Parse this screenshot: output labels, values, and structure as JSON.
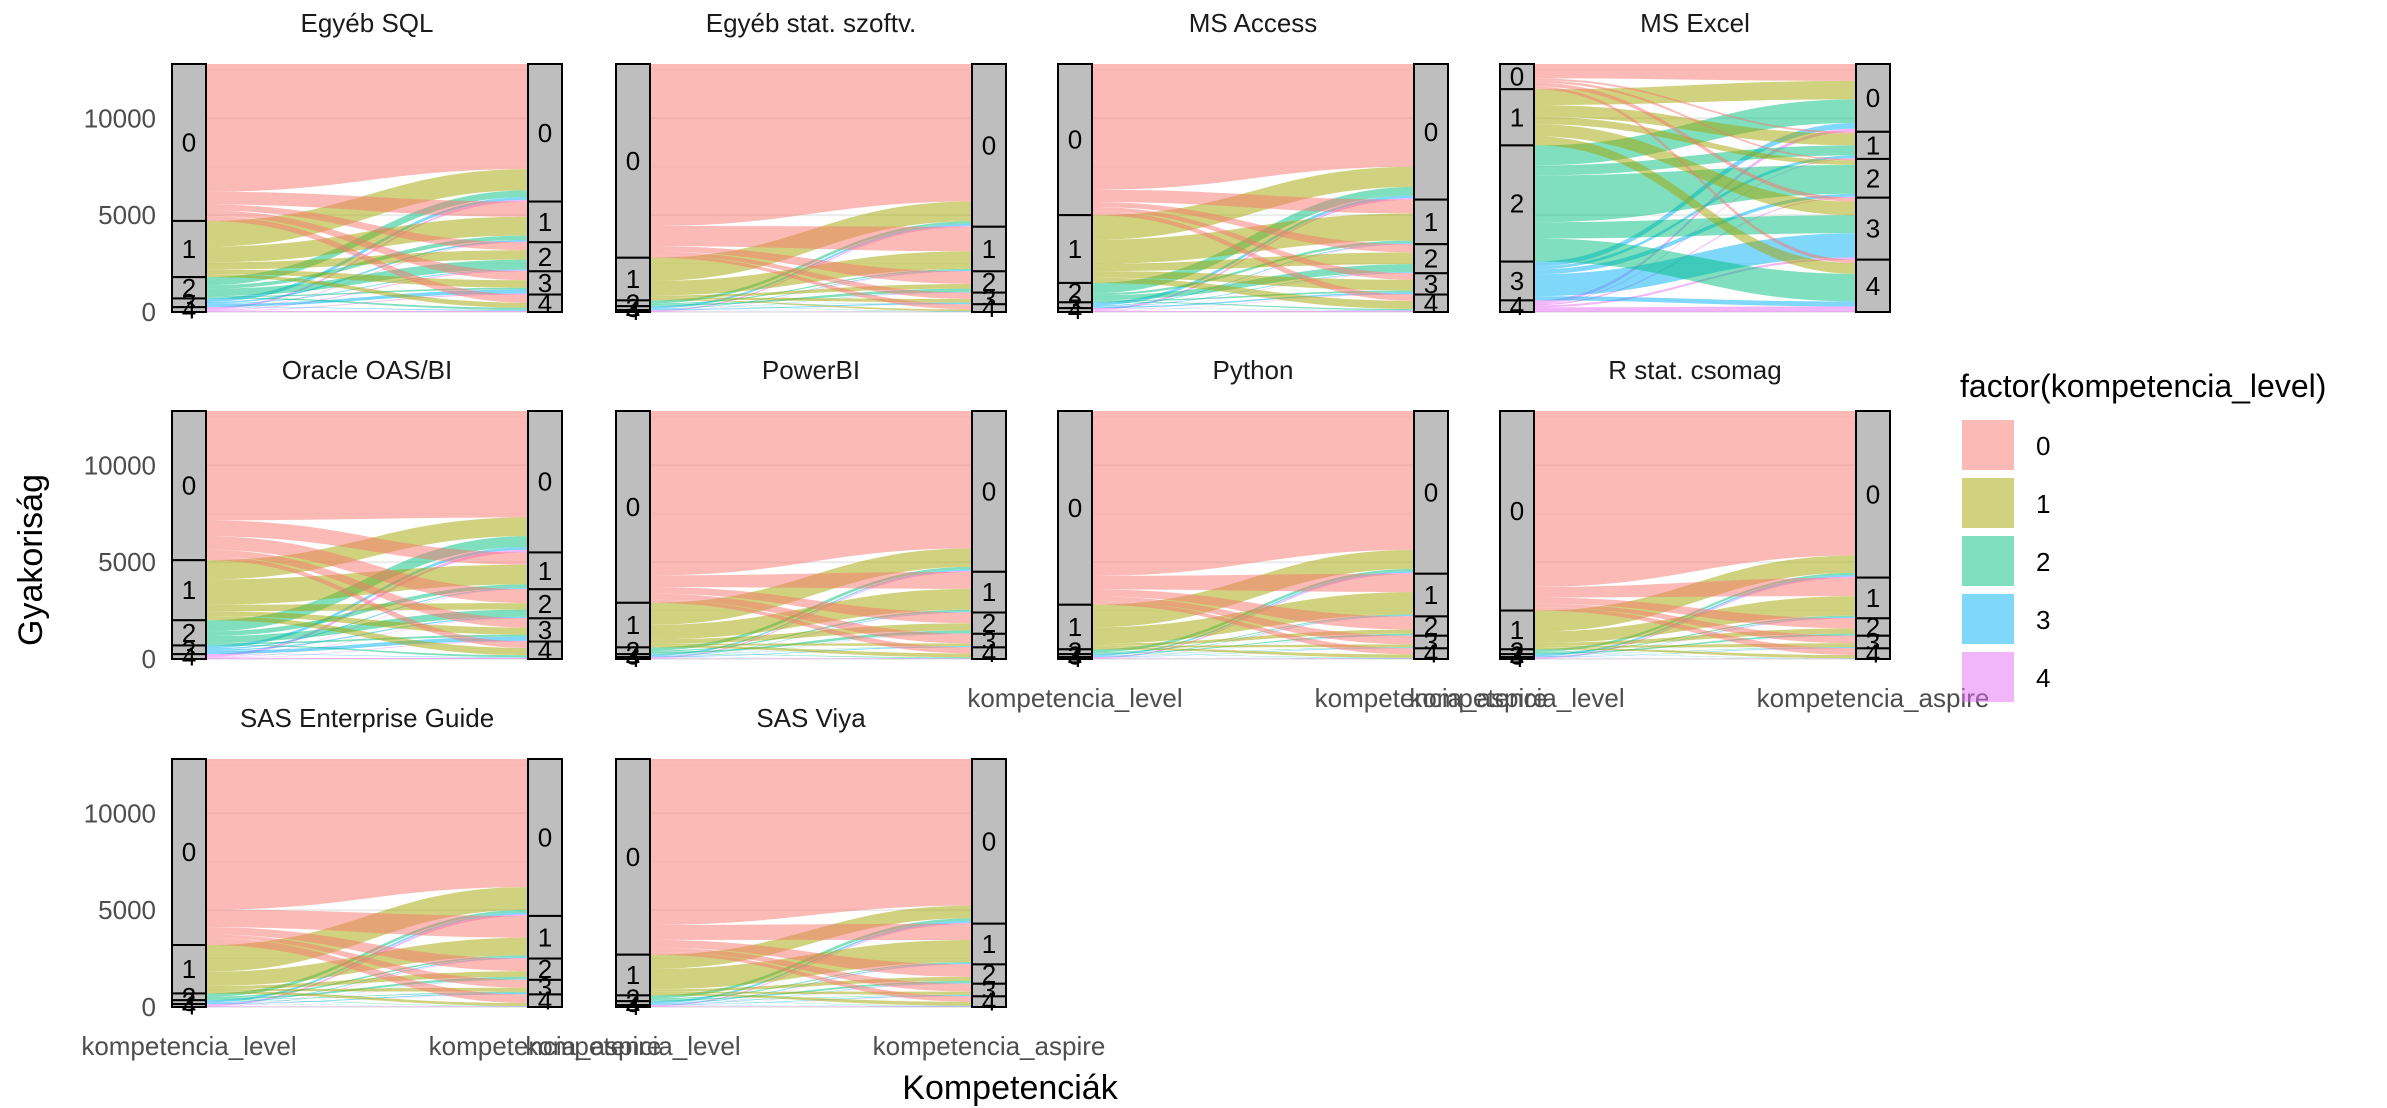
{
  "chart_data": {
    "type": "alluvial",
    "xlabel": "Kompetenciák",
    "ylabel": "Gyakoriság",
    "ylim": [
      0,
      12800
    ],
    "yticks": [
      0,
      5000,
      10000
    ],
    "stages": [
      "kompetencia_level",
      "kompetencia_aspire"
    ],
    "legend": {
      "title": "factor(kompetencia_level)",
      "position": "right",
      "entries": [
        {
          "label": "0",
          "color": "#F8766D"
        },
        {
          "label": "1",
          "color": "#A3A500"
        },
        {
          "label": "2",
          "color": "#00BF7D"
        },
        {
          "label": "3",
          "color": "#00B0F6"
        },
        {
          "label": "4",
          "color": "#E76BF3"
        }
      ]
    },
    "grid": true,
    "panels": [
      {
        "title": "Egyéb SQL",
        "level": [
          {
            "label": "0",
            "value": 8100
          },
          {
            "label": "1",
            "value": 2900
          },
          {
            "label": "2",
            "value": 1100
          },
          {
            "label": "3",
            "value": 450
          },
          {
            "label": "4",
            "value": 250
          }
        ],
        "aspire": [
          {
            "label": "0",
            "value": 7100
          },
          {
            "label": "1",
            "value": 2100
          },
          {
            "label": "2",
            "value": 1500
          },
          {
            "label": "3",
            "value": 1200
          },
          {
            "label": "4",
            "value": 900
          }
        ]
      },
      {
        "title": "Egyéb stat. szoftv.",
        "level": [
          {
            "label": "0",
            "value": 10000
          },
          {
            "label": "1",
            "value": 2200
          },
          {
            "label": "2",
            "value": 300
          },
          {
            "label": "3",
            "value": 200
          },
          {
            "label": "4",
            "value": 100
          }
        ],
        "aspire": [
          {
            "label": "0",
            "value": 8400
          },
          {
            "label": "1",
            "value": 2300
          },
          {
            "label": "2",
            "value": 1100
          },
          {
            "label": "3",
            "value": 600
          },
          {
            "label": "4",
            "value": 400
          }
        ]
      },
      {
        "title": "MS Access",
        "level": [
          {
            "label": "0",
            "value": 7800
          },
          {
            "label": "1",
            "value": 3500
          },
          {
            "label": "2",
            "value": 1000
          },
          {
            "label": "3",
            "value": 300
          },
          {
            "label": "4",
            "value": 200
          }
        ],
        "aspire": [
          {
            "label": "0",
            "value": 7000
          },
          {
            "label": "1",
            "value": 2300
          },
          {
            "label": "2",
            "value": 1500
          },
          {
            "label": "3",
            "value": 1100
          },
          {
            "label": "4",
            "value": 900
          }
        ]
      },
      {
        "title": "MS Excel",
        "level": [
          {
            "label": "0",
            "value": 1300
          },
          {
            "label": "1",
            "value": 2900
          },
          {
            "label": "2",
            "value": 6000
          },
          {
            "label": "3",
            "value": 2000
          },
          {
            "label": "4",
            "value": 600
          }
        ],
        "aspire": [
          {
            "label": "0",
            "value": 3500
          },
          {
            "label": "1",
            "value": 1400
          },
          {
            "label": "2",
            "value": 2000
          },
          {
            "label": "3",
            "value": 3200
          },
          {
            "label": "4",
            "value": 2700
          }
        ]
      },
      {
        "title": "Oracle OAS/BI",
        "level": [
          {
            "label": "0",
            "value": 7700
          },
          {
            "label": "1",
            "value": 3100
          },
          {
            "label": "2",
            "value": 1300
          },
          {
            "label": "3",
            "value": 450
          },
          {
            "label": "4",
            "value": 250
          }
        ],
        "aspire": [
          {
            "label": "0",
            "value": 7300
          },
          {
            "label": "1",
            "value": 1900
          },
          {
            "label": "2",
            "value": 1500
          },
          {
            "label": "3",
            "value": 1200
          },
          {
            "label": "4",
            "value": 900
          }
        ]
      },
      {
        "title": "PowerBI",
        "level": [
          {
            "label": "0",
            "value": 9900
          },
          {
            "label": "1",
            "value": 2300
          },
          {
            "label": "2",
            "value": 350
          },
          {
            "label": "3",
            "value": 150
          },
          {
            "label": "4",
            "value": 100
          }
        ],
        "aspire": [
          {
            "label": "0",
            "value": 8300
          },
          {
            "label": "1",
            "value": 2100
          },
          {
            "label": "2",
            "value": 1100
          },
          {
            "label": "3",
            "value": 700
          },
          {
            "label": "4",
            "value": 600
          }
        ]
      },
      {
        "title": "Python",
        "level": [
          {
            "label": "0",
            "value": 10000
          },
          {
            "label": "1",
            "value": 2300
          },
          {
            "label": "2",
            "value": 250
          },
          {
            "label": "3",
            "value": 150
          },
          {
            "label": "4",
            "value": 100
          }
        ],
        "aspire": [
          {
            "label": "0",
            "value": 8400
          },
          {
            "label": "1",
            "value": 2200
          },
          {
            "label": "2",
            "value": 1000
          },
          {
            "label": "3",
            "value": 650
          },
          {
            "label": "4",
            "value": 550
          }
        ]
      },
      {
        "title": "R stat. csomag",
        "level": [
          {
            "label": "0",
            "value": 10300
          },
          {
            "label": "1",
            "value": 2000
          },
          {
            "label": "2",
            "value": 250
          },
          {
            "label": "3",
            "value": 150
          },
          {
            "label": "4",
            "value": 100
          }
        ],
        "aspire": [
          {
            "label": "0",
            "value": 8600
          },
          {
            "label": "1",
            "value": 2100
          },
          {
            "label": "2",
            "value": 900
          },
          {
            "label": "3",
            "value": 650
          },
          {
            "label": "4",
            "value": 550
          }
        ]
      },
      {
        "title": "SAS Enterprise Guide",
        "level": [
          {
            "label": "0",
            "value": 9600
          },
          {
            "label": "1",
            "value": 2500
          },
          {
            "label": "2",
            "value": 350
          },
          {
            "label": "3",
            "value": 200
          },
          {
            "label": "4",
            "value": 150
          }
        ],
        "aspire": [
          {
            "label": "0",
            "value": 8100
          },
          {
            "label": "1",
            "value": 2200
          },
          {
            "label": "2",
            "value": 1100
          },
          {
            "label": "3",
            "value": 750
          },
          {
            "label": "4",
            "value": 650
          }
        ]
      },
      {
        "title": "SAS Viya",
        "level": [
          {
            "label": "0",
            "value": 10100
          },
          {
            "label": "1",
            "value": 2100
          },
          {
            "label": "2",
            "value": 300
          },
          {
            "label": "3",
            "value": 200
          },
          {
            "label": "4",
            "value": 100
          }
        ],
        "aspire": [
          {
            "label": "0",
            "value": 8500
          },
          {
            "label": "1",
            "value": 2100
          },
          {
            "label": "2",
            "value": 1000
          },
          {
            "label": "3",
            "value": 650
          },
          {
            "label": "4",
            "value": 550
          }
        ]
      }
    ]
  }
}
